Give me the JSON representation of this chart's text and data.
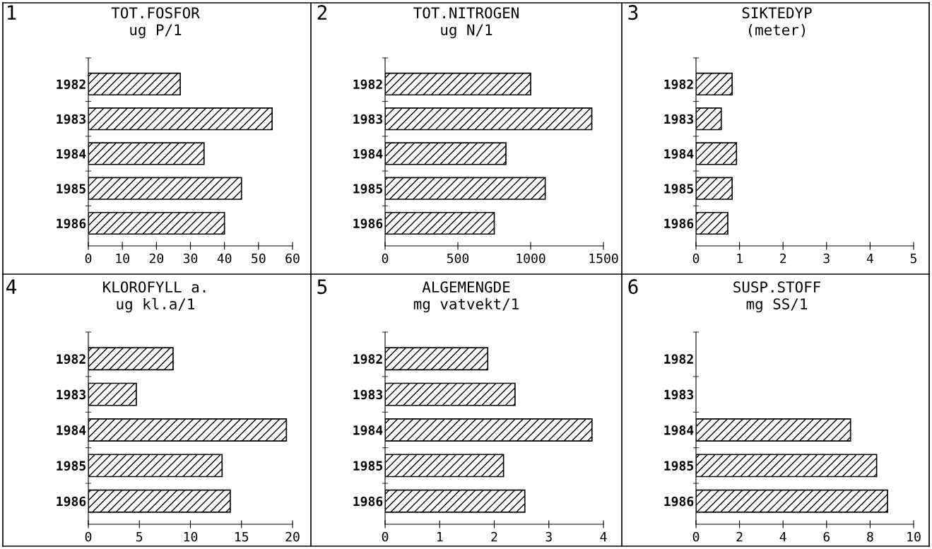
{
  "chart_data": [
    {
      "type": "bar",
      "orientation": "horizontal",
      "title": "TOT.FOSFOR",
      "subtitle": "ug P/1",
      "annotations": [
        "1"
      ],
      "categories": [
        "1982",
        "1983",
        "1984",
        "1985",
        "1986"
      ],
      "values": [
        27,
        54,
        34,
        45,
        40
      ],
      "color": "#000000",
      "xlim": [
        0,
        60
      ],
      "xticks": [
        0,
        10,
        20,
        30,
        40,
        50,
        60
      ],
      "grid": false
    },
    {
      "type": "bar",
      "orientation": "horizontal",
      "title": "TOT.NITROGEN",
      "subtitle": "ug N/1",
      "annotations": [
        "2"
      ],
      "categories": [
        "1982",
        "1983",
        "1984",
        "1985",
        "1986"
      ],
      "values": [
        1000,
        1420,
        830,
        1100,
        750
      ],
      "color": "#000000",
      "xlim": [
        0,
        1500
      ],
      "xticks": [
        0,
        500,
        1000,
        1500
      ],
      "grid": false
    },
    {
      "type": "bar",
      "orientation": "horizontal",
      "title": "SIKTEDYP",
      "subtitle": "(meter)",
      "annotations": [
        "3"
      ],
      "categories": [
        "1982",
        "1983",
        "1984",
        "1985",
        "1986"
      ],
      "values": [
        0.83,
        0.58,
        0.93,
        0.83,
        0.73
      ],
      "color": "#000000",
      "xlim": [
        0,
        5
      ],
      "xticks": [
        0,
        1,
        2,
        3,
        4,
        5
      ],
      "grid": false
    },
    {
      "type": "bar",
      "orientation": "horizontal",
      "title": "KLOROFYLL a.",
      "subtitle": "ug kl.a/1",
      "annotations": [
        "4"
      ],
      "categories": [
        "1982",
        "1983",
        "1984",
        "1985",
        "1986"
      ],
      "values": [
        8.3,
        4.7,
        19.4,
        13.1,
        13.9
      ],
      "color": "#000000",
      "xlim": [
        0,
        20
      ],
      "xticks": [
        0,
        5,
        10,
        15,
        20
      ],
      "grid": false
    },
    {
      "type": "bar",
      "orientation": "horizontal",
      "title": "ALGEMENGDE",
      "subtitle": "mg vatvekt/1",
      "annotations": [
        "5"
      ],
      "categories": [
        "1982",
        "1983",
        "1984",
        "1985",
        "1986"
      ],
      "values": [
        1.88,
        2.38,
        3.79,
        2.17,
        2.56
      ],
      "color": "#000000",
      "xlim": [
        0,
        4
      ],
      "xticks": [
        0,
        1,
        2,
        3,
        4
      ],
      "grid": false
    },
    {
      "type": "bar",
      "orientation": "horizontal",
      "title": "SUSP.STOFF",
      "subtitle": "mg SS/1",
      "annotations": [
        "6"
      ],
      "categories": [
        "1982",
        "1983",
        "1984",
        "1985",
        "1986"
      ],
      "values": [
        null,
        null,
        7.1,
        8.3,
        8.8
      ],
      "color": "#000000",
      "xlim": [
        0,
        10
      ],
      "xticks": [
        0,
        2,
        4,
        6,
        8,
        10
      ],
      "grid": false
    }
  ]
}
